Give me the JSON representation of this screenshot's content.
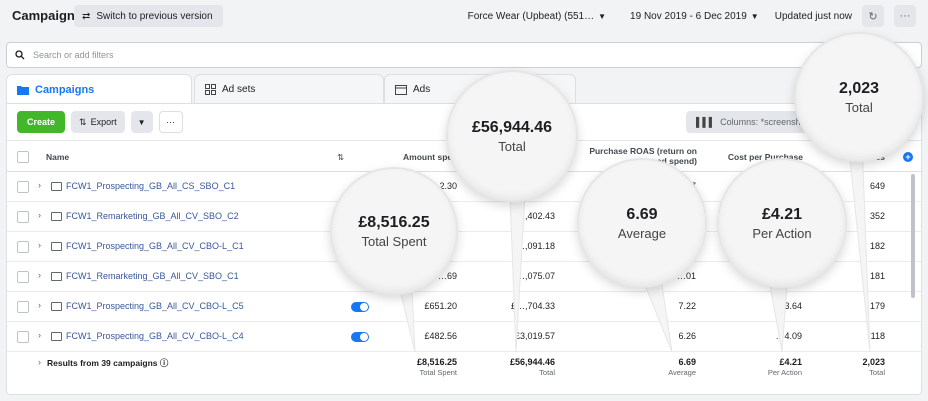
{
  "topbar": {
    "title": "Campaigns",
    "switch_label": "Switch to previous version",
    "account": "Force Wear (Upbeat) (551…",
    "date_range": "19 Nov 2019 - 6 Dec 2019",
    "updated": "Updated just now",
    "more": "···"
  },
  "search": {
    "placeholder": "Search or add filters"
  },
  "tabs": [
    {
      "label": "Campaigns",
      "icon": "folder-icon"
    },
    {
      "label": "Ad sets",
      "icon": "grid-icon"
    },
    {
      "label": "Ads",
      "icon": "ad-icon"
    }
  ],
  "toolbar": {
    "create": "Create",
    "export": "Export",
    "more": "···",
    "columns": "Columns: *screenshots"
  },
  "table": {
    "headers": {
      "name": "Name",
      "amount_spent": "Amount spe",
      "roas": "Purchase ROAS (return on ad spend)",
      "cost_per_purchase": "Cost per Purchase",
      "purchases": "P…chases"
    },
    "rows": [
      {
        "name": "FCW1_Prospecting_GB_All_CS_SBO_C1",
        "spent": "…2.30",
        "value": "",
        "roas": "…7",
        "cost": "",
        "purchases": "649"
      },
      {
        "name": "FCW1_Remarketing_GB_All_CV_SBO_C2",
        "spent": "",
        "value": "£…,402.43",
        "roas": "",
        "cost": "",
        "purchases": "352"
      },
      {
        "name": "FCW1_Prospecting_GB_All_CV_CBO-L_C1",
        "spent": "",
        "value": "…,091.18",
        "roas": "",
        "cost": "",
        "purchases": "182"
      },
      {
        "name": "FCW1_Remarketing_GB_All_CV_SBO_C1",
        "spent": "…69",
        "value": "…,075.07",
        "roas": "…01",
        "cost": "",
        "purchases": "181"
      },
      {
        "name": "FCW1_Prospecting_GB_All_CV_CBO-L_C5",
        "spent": "£651.20",
        "value": "£…,704.33",
        "roas": "7.22",
        "cost": "…3.64",
        "purchases": "179"
      },
      {
        "name": "FCW1_Prospecting_GB_All_CV_CBO-L_C4",
        "spent": "£482.56",
        "value": "£3,019.57",
        "roas": "6.26",
        "cost": "…4.09",
        "purchases": "118"
      }
    ],
    "footer": {
      "label": "Results from 39 campaigns",
      "spent": "£8,516.25",
      "spent_sub": "Total Spent",
      "value": "£56,944.46",
      "value_sub": "Total",
      "roas": "6.69",
      "roas_sub": "Average",
      "cost": "£4.21",
      "cost_sub": "Per Action",
      "purchases": "2,023",
      "purchases_sub": "Total"
    }
  },
  "callouts": [
    {
      "value": "£8,516.25",
      "label": "Total Spent"
    },
    {
      "value": "£56,944.46",
      "label": "Total"
    },
    {
      "value": "6.69",
      "label": "Average"
    },
    {
      "value": "£4.21",
      "label": "Per Action"
    },
    {
      "value": "2,023",
      "label": "Total"
    }
  ],
  "colors": {
    "accent": "#1877f2",
    "create": "#42b72a",
    "link": "#385898"
  }
}
